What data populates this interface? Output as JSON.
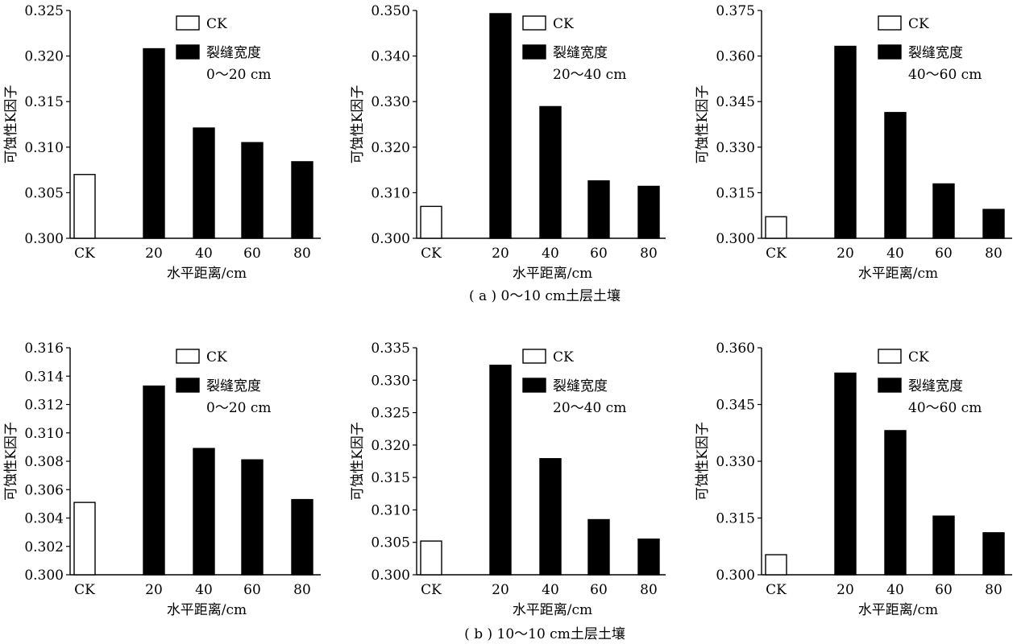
{
  "captions": {
    "a": "( a ) 0～10 cm土层土壤",
    "b": "( b ) 10～10 cm土层土壤"
  },
  "colors": {
    "ck": "#ffffff",
    "crack": "#000000",
    "axis": "#000000"
  },
  "chart_data": [
    {
      "type": "bar",
      "categories": [
        "CK",
        "20",
        "40",
        "60",
        "80"
      ],
      "values": [
        0.307,
        0.3208,
        0.3121,
        0.3105,
        0.3084
      ],
      "xlabel": "水平距离/cm",
      "ylabel": "可蚀性K因子",
      "ylim": [
        0.3,
        0.325
      ],
      "yticks": [
        "0.300",
        "0.305",
        "0.310",
        "0.315",
        "0.320",
        "0.325"
      ],
      "legend": {
        "ck": "CK",
        "crack_line1": "裂缝宽度",
        "crack_line2": "0～20 cm",
        "placement": "top-right"
      },
      "grid": false
    },
    {
      "type": "bar",
      "categories": [
        "CK",
        "20",
        "40",
        "60",
        "80"
      ],
      "values": [
        0.307,
        0.3493,
        0.3289,
        0.3126,
        0.3114
      ],
      "xlabel": "水平距离/cm",
      "ylabel": "可蚀性K因子",
      "ylim": [
        0.3,
        0.35
      ],
      "yticks": [
        "0.300",
        "0.310",
        "0.320",
        "0.330",
        "0.340",
        "0.350"
      ],
      "legend": {
        "ck": "CK",
        "crack_line1": "裂缝宽度",
        "crack_line2": "20～40 cm",
        "placement": "top-right"
      },
      "grid": false
    },
    {
      "type": "bar",
      "categories": [
        "CK",
        "20",
        "40",
        "60",
        "80"
      ],
      "values": [
        0.3071,
        0.3632,
        0.3414,
        0.3179,
        0.3095
      ],
      "xlabel": "水平距离/cm",
      "ylabel": "可蚀性K因子",
      "ylim": [
        0.3,
        0.375
      ],
      "yticks": [
        "0.300",
        "0.315",
        "0.330",
        "0.345",
        "0.360",
        "0.375"
      ],
      "legend": {
        "ck": "CK",
        "crack_line1": "裂缝宽度",
        "crack_line2": "40～60 cm",
        "placement": "top-right"
      },
      "grid": false
    },
    {
      "type": "bar",
      "categories": [
        "CK",
        "20",
        "40",
        "60",
        "80"
      ],
      "values": [
        0.3051,
        0.3133,
        0.3089,
        0.3081,
        0.3053
      ],
      "xlabel": "水平距离/cm",
      "ylabel": "可蚀性K因子",
      "ylim": [
        0.3,
        0.316
      ],
      "yticks": [
        "0.300",
        "0.302",
        "0.304",
        "0.306",
        "0.308",
        "0.310",
        "0.312",
        "0.314",
        "0.316"
      ],
      "legend": {
        "ck": "CK",
        "crack_line1": "裂缝宽度",
        "crack_line2": "0～20 cm",
        "placement": "top-right"
      },
      "grid": false
    },
    {
      "type": "bar",
      "categories": [
        "CK",
        "20",
        "40",
        "60",
        "80"
      ],
      "values": [
        0.3052,
        0.3323,
        0.3179,
        0.3085,
        0.3055
      ],
      "xlabel": "水平距离/cm",
      "ylabel": "可蚀性K因子",
      "ylim": [
        0.3,
        0.335
      ],
      "yticks": [
        "0.300",
        "0.305",
        "0.310",
        "0.315",
        "0.320",
        "0.325",
        "0.330",
        "0.335"
      ],
      "legend": {
        "ck": "CK",
        "crack_line1": "裂缝宽度",
        "crack_line2": "20～40 cm",
        "placement": "top-right"
      },
      "grid": false
    },
    {
      "type": "bar",
      "categories": [
        "CK",
        "20",
        "40",
        "60",
        "80"
      ],
      "values": [
        0.3053,
        0.3533,
        0.3381,
        0.3155,
        0.3111
      ],
      "xlabel": "水平距离/cm",
      "ylabel": "可蚀性K因子",
      "ylim": [
        0.3,
        0.36
      ],
      "yticks": [
        "0.300",
        "0.315",
        "0.330",
        "0.345",
        "0.360"
      ],
      "legend": {
        "ck": "CK",
        "crack_line1": "裂缝宽度",
        "crack_line2": "40～60 cm",
        "placement": "top-right"
      },
      "grid": false
    }
  ]
}
